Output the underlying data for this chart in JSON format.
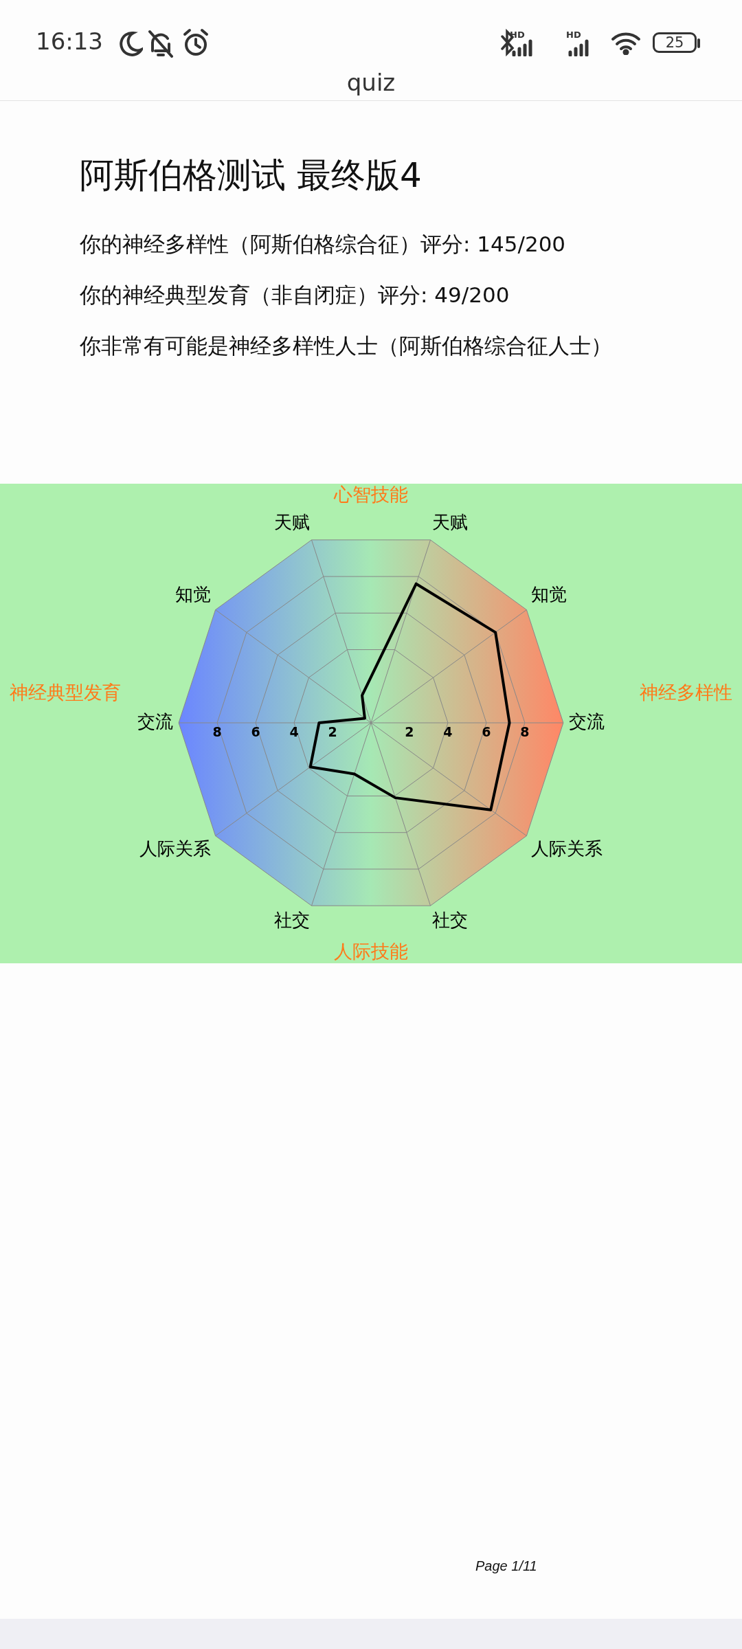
{
  "chart_data": {
    "type": "radar",
    "title": "阿斯伯格测试 最终版4",
    "annotations": [
      "16:13",
      "HD",
      "HD",
      "25",
      "quiz",
      "你的神经多样性（阿斯伯格综合征）评分: 145/200",
      "你的神经典型发育（非自闭症）评分: 49/200",
      "你非常有可能是神经多样性人士（阿斯伯格综合征人士）",
      "心智技能",
      "人际技能",
      "神经典型发育",
      "神经多样性",
      "Page 1/11",
      "2",
      "4",
      "6",
      "8"
    ],
    "categories": [
      "天赋",
      "知觉",
      "交流",
      "人际关系",
      "社交",
      "社交",
      "人际关系",
      "交流",
      "知觉",
      "天赋"
    ],
    "series": [
      {
        "color": "#000000",
        "values": [
          7.6,
          8.0,
          7.2,
          7.7,
          4.1,
          2.8,
          3.9,
          2.7,
          0.4,
          1.5
        ]
      }
    ],
    "ylim": [
      0,
      10
    ],
    "yticks": [
      2,
      4,
      6,
      8
    ],
    "grid": true,
    "legend": false,
    "marker": "none",
    "line_style": "solid"
  }
}
